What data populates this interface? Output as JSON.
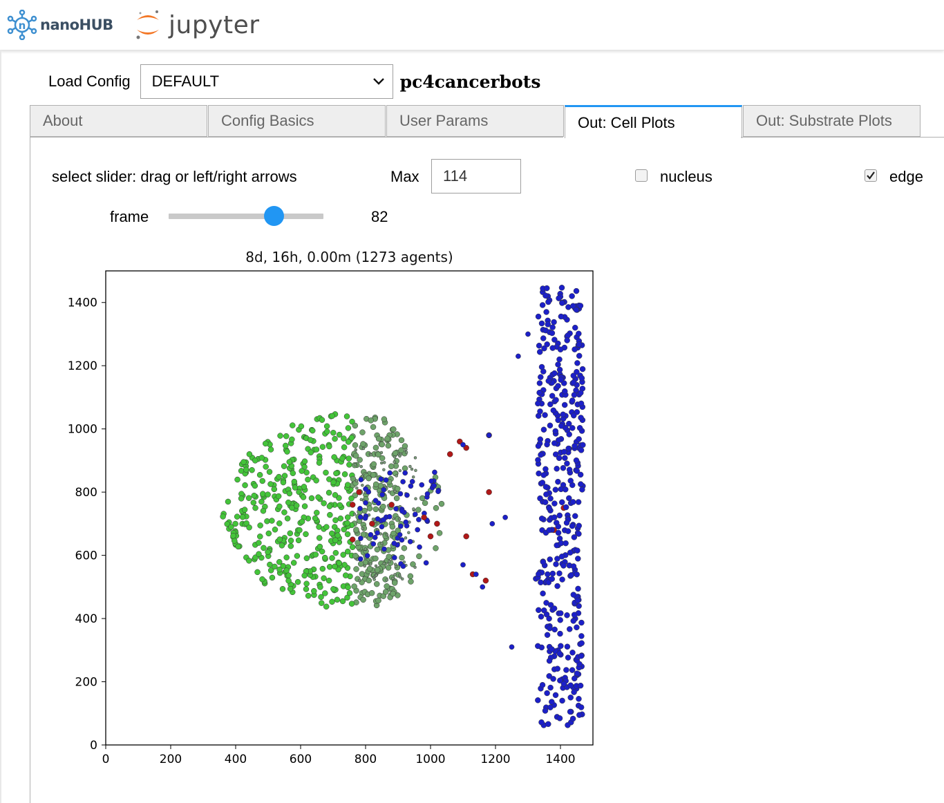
{
  "branding": {
    "nanohub": "nanoHUB",
    "jupyter": "jupyter"
  },
  "config": {
    "label": "Load Config",
    "selected": "DEFAULT",
    "app_title": "pc4cancerbots"
  },
  "tabs": [
    "About",
    "Config Basics",
    "User Params",
    "Out: Cell Plots",
    "Out: Substrate Plots"
  ],
  "active_tab": "Out: Cell Plots",
  "controls": {
    "slider_hint": "select slider: drag or left/right arrows",
    "max_label": "Max",
    "max_value": "114",
    "nucleus_label": "nucleus",
    "nucleus_checked": false,
    "edge_label": "edge",
    "edge_checked": true,
    "frame_label": "frame",
    "frame_value": "82",
    "frame_max": 114
  },
  "colors": {
    "accent": "#2196f3",
    "green_cells": "#44c43a",
    "blue_cells": "#1c20c8",
    "red_cells": "#b01818",
    "gray_cells": "#7a9a7a"
  },
  "chart_data": {
    "type": "scatter",
    "title": "8d, 16h, 0.00m (1273 agents)",
    "xlabel": "",
    "ylabel": "",
    "xlim": [
      0,
      1500
    ],
    "ylim": [
      0,
      1500
    ],
    "xticks": [
      0,
      200,
      400,
      600,
      800,
      1000,
      1200,
      1400
    ],
    "yticks": [
      0,
      200,
      400,
      600,
      800,
      1000,
      1200,
      1400
    ],
    "series": [
      {
        "color": "#44c43a",
        "region": {
          "center": [
            760,
            740
          ],
          "rx": 150,
          "ry": 160,
          "extent_x": [
            450,
            900
          ]
        }
      },
      {
        "color": "#1c20c8",
        "region": {
          "band_x": [
            1310,
            1470
          ],
          "band_y": [
            60,
            1450
          ]
        }
      },
      {
        "color": "#1c20c8",
        "region": {
          "center": [
            900,
            720
          ],
          "rx": 130,
          "ry": 200
        }
      },
      {
        "color": "#b01818",
        "region": {
          "center": [
            860,
            720
          ],
          "rx": 120,
          "ry": 120
        }
      },
      {
        "color": "#7a9a7a",
        "region": {
          "center": [
            850,
            730
          ],
          "rx": 110,
          "ry": 200
        }
      }
    ]
  }
}
